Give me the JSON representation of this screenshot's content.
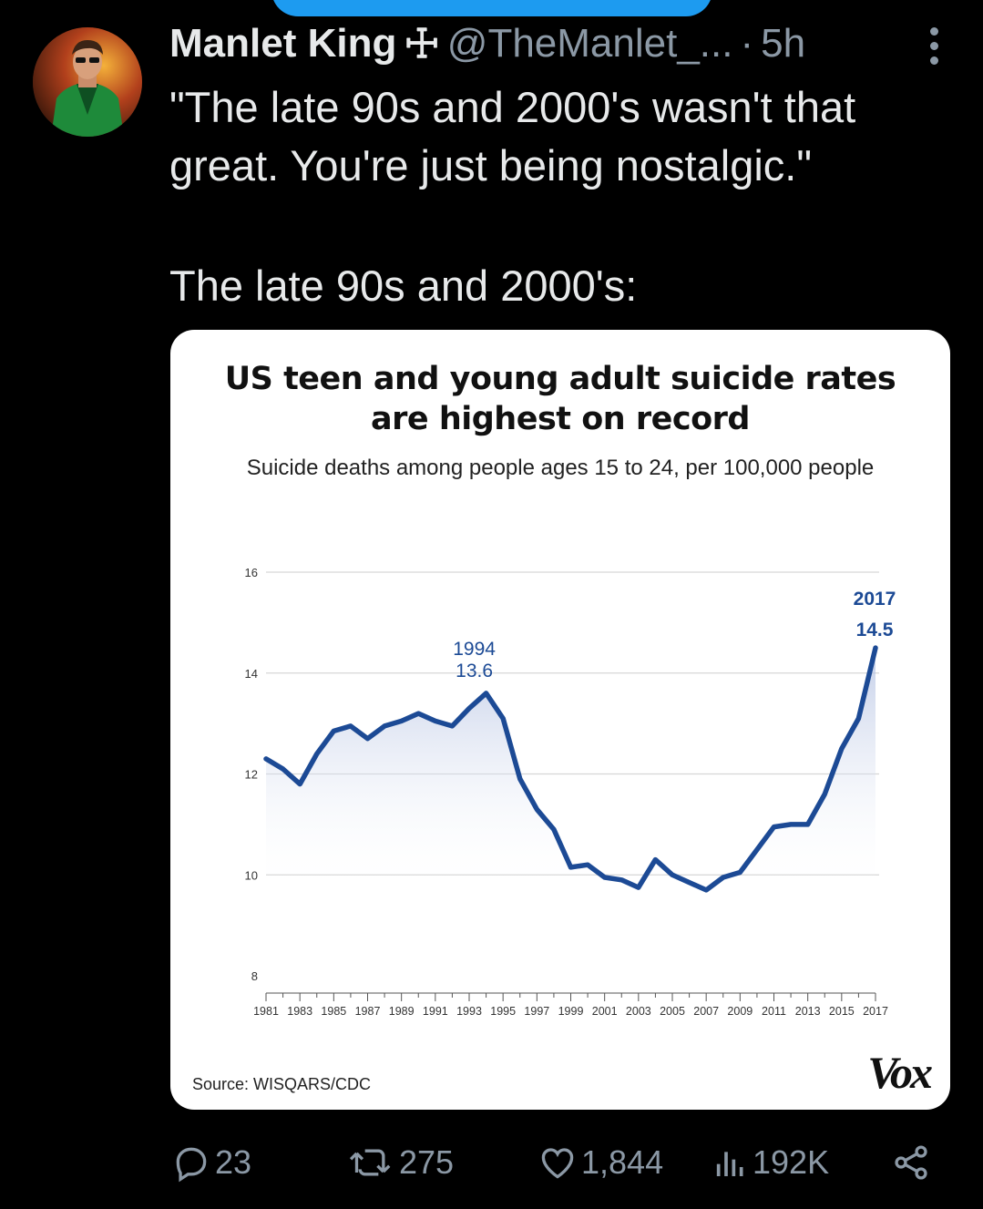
{
  "tweet": {
    "author_name": "Manlet King",
    "author_badge": "☩",
    "handle": "@TheManlet_...",
    "separator": "·",
    "time": "5h",
    "text_line1": "\"The late 90s and 2000's wasn't that great. You're just being nostalgic.\"",
    "text_line2": "The late 90s and 2000's:"
  },
  "actions": {
    "replies": "23",
    "reposts": "275",
    "likes": "1,844",
    "views": "192K"
  },
  "icons": [
    "reply-icon",
    "repost-icon",
    "like-icon",
    "views-icon",
    "share-icon",
    "more-icon"
  ],
  "colors": {
    "accent": "#1d9bf0",
    "line": "#1c4a95",
    "muted": "#8b98a5"
  },
  "chart_data": {
    "type": "area",
    "title_line1": "US teen and young adult suicide rates",
    "title_line2": "are highest on record",
    "subtitle": "Suicide deaths among people ages 15 to 24, per 100,000 people",
    "x": [
      1981,
      1982,
      1983,
      1984,
      1985,
      1986,
      1987,
      1988,
      1989,
      1990,
      1991,
      1992,
      1993,
      1994,
      1995,
      1996,
      1997,
      1998,
      1999,
      2000,
      2001,
      2002,
      2003,
      2004,
      2005,
      2006,
      2007,
      2008,
      2009,
      2010,
      2011,
      2012,
      2013,
      2014,
      2015,
      2016,
      2017
    ],
    "y": [
      12.3,
      12.1,
      11.8,
      12.4,
      12.85,
      12.95,
      12.7,
      12.95,
      13.05,
      13.2,
      13.05,
      12.95,
      13.3,
      13.6,
      13.1,
      11.9,
      11.3,
      10.9,
      10.15,
      10.2,
      9.95,
      9.9,
      9.75,
      10.3,
      10.0,
      9.85,
      9.7,
      9.95,
      10.05,
      10.5,
      10.95,
      11.0,
      11.0,
      11.6,
      12.5,
      13.1,
      14.5
    ],
    "ylim": [
      8,
      16
    ],
    "yticks": [
      8,
      10,
      12,
      14,
      16
    ],
    "xticks": [
      1981,
      1983,
      1985,
      1987,
      1989,
      1991,
      1993,
      1995,
      1997,
      1999,
      2001,
      2003,
      2005,
      2007,
      2009,
      2011,
      2013,
      2015,
      2017
    ],
    "annotations": [
      {
        "label": "1994",
        "value": "13.6"
      },
      {
        "label": "2017",
        "value": "14.5"
      }
    ],
    "grid": true,
    "source": "Source: WISQARS/CDC",
    "logo": "Vox"
  }
}
